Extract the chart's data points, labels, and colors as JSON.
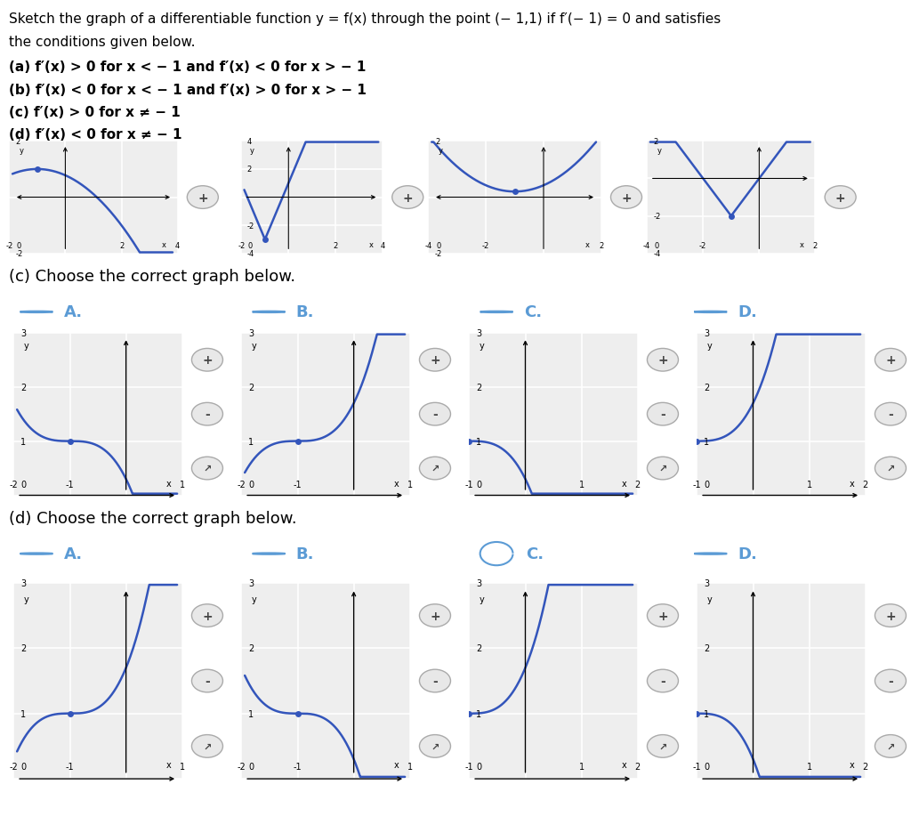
{
  "blue": "#3355BB",
  "bg": "#FFFFFF",
  "panel_bg": "#EEEEEE",
  "grid_color": "#FFFFFF",
  "tc": "#000000",
  "rc": "#5B9BD5",
  "top_text": [
    "Sketch the graph of a differentiable function y = f(x) through the point (− 1,1) if f′(− 1) = 0 and satisfies",
    "the conditions given below.",
    "(a) f′(x) > 0 for x < − 1 and f′(x) < 0 for x > − 1",
    "(b) f′(x) < 0 for x < − 1 and f′(x) > 0 for x > − 1",
    "(c) f′(x) > 0 for x ≠ − 1",
    "(d) f′(x) < 0 for x ≠ − 1"
  ],
  "text_bold": [
    false,
    false,
    true,
    true,
    true,
    true
  ]
}
